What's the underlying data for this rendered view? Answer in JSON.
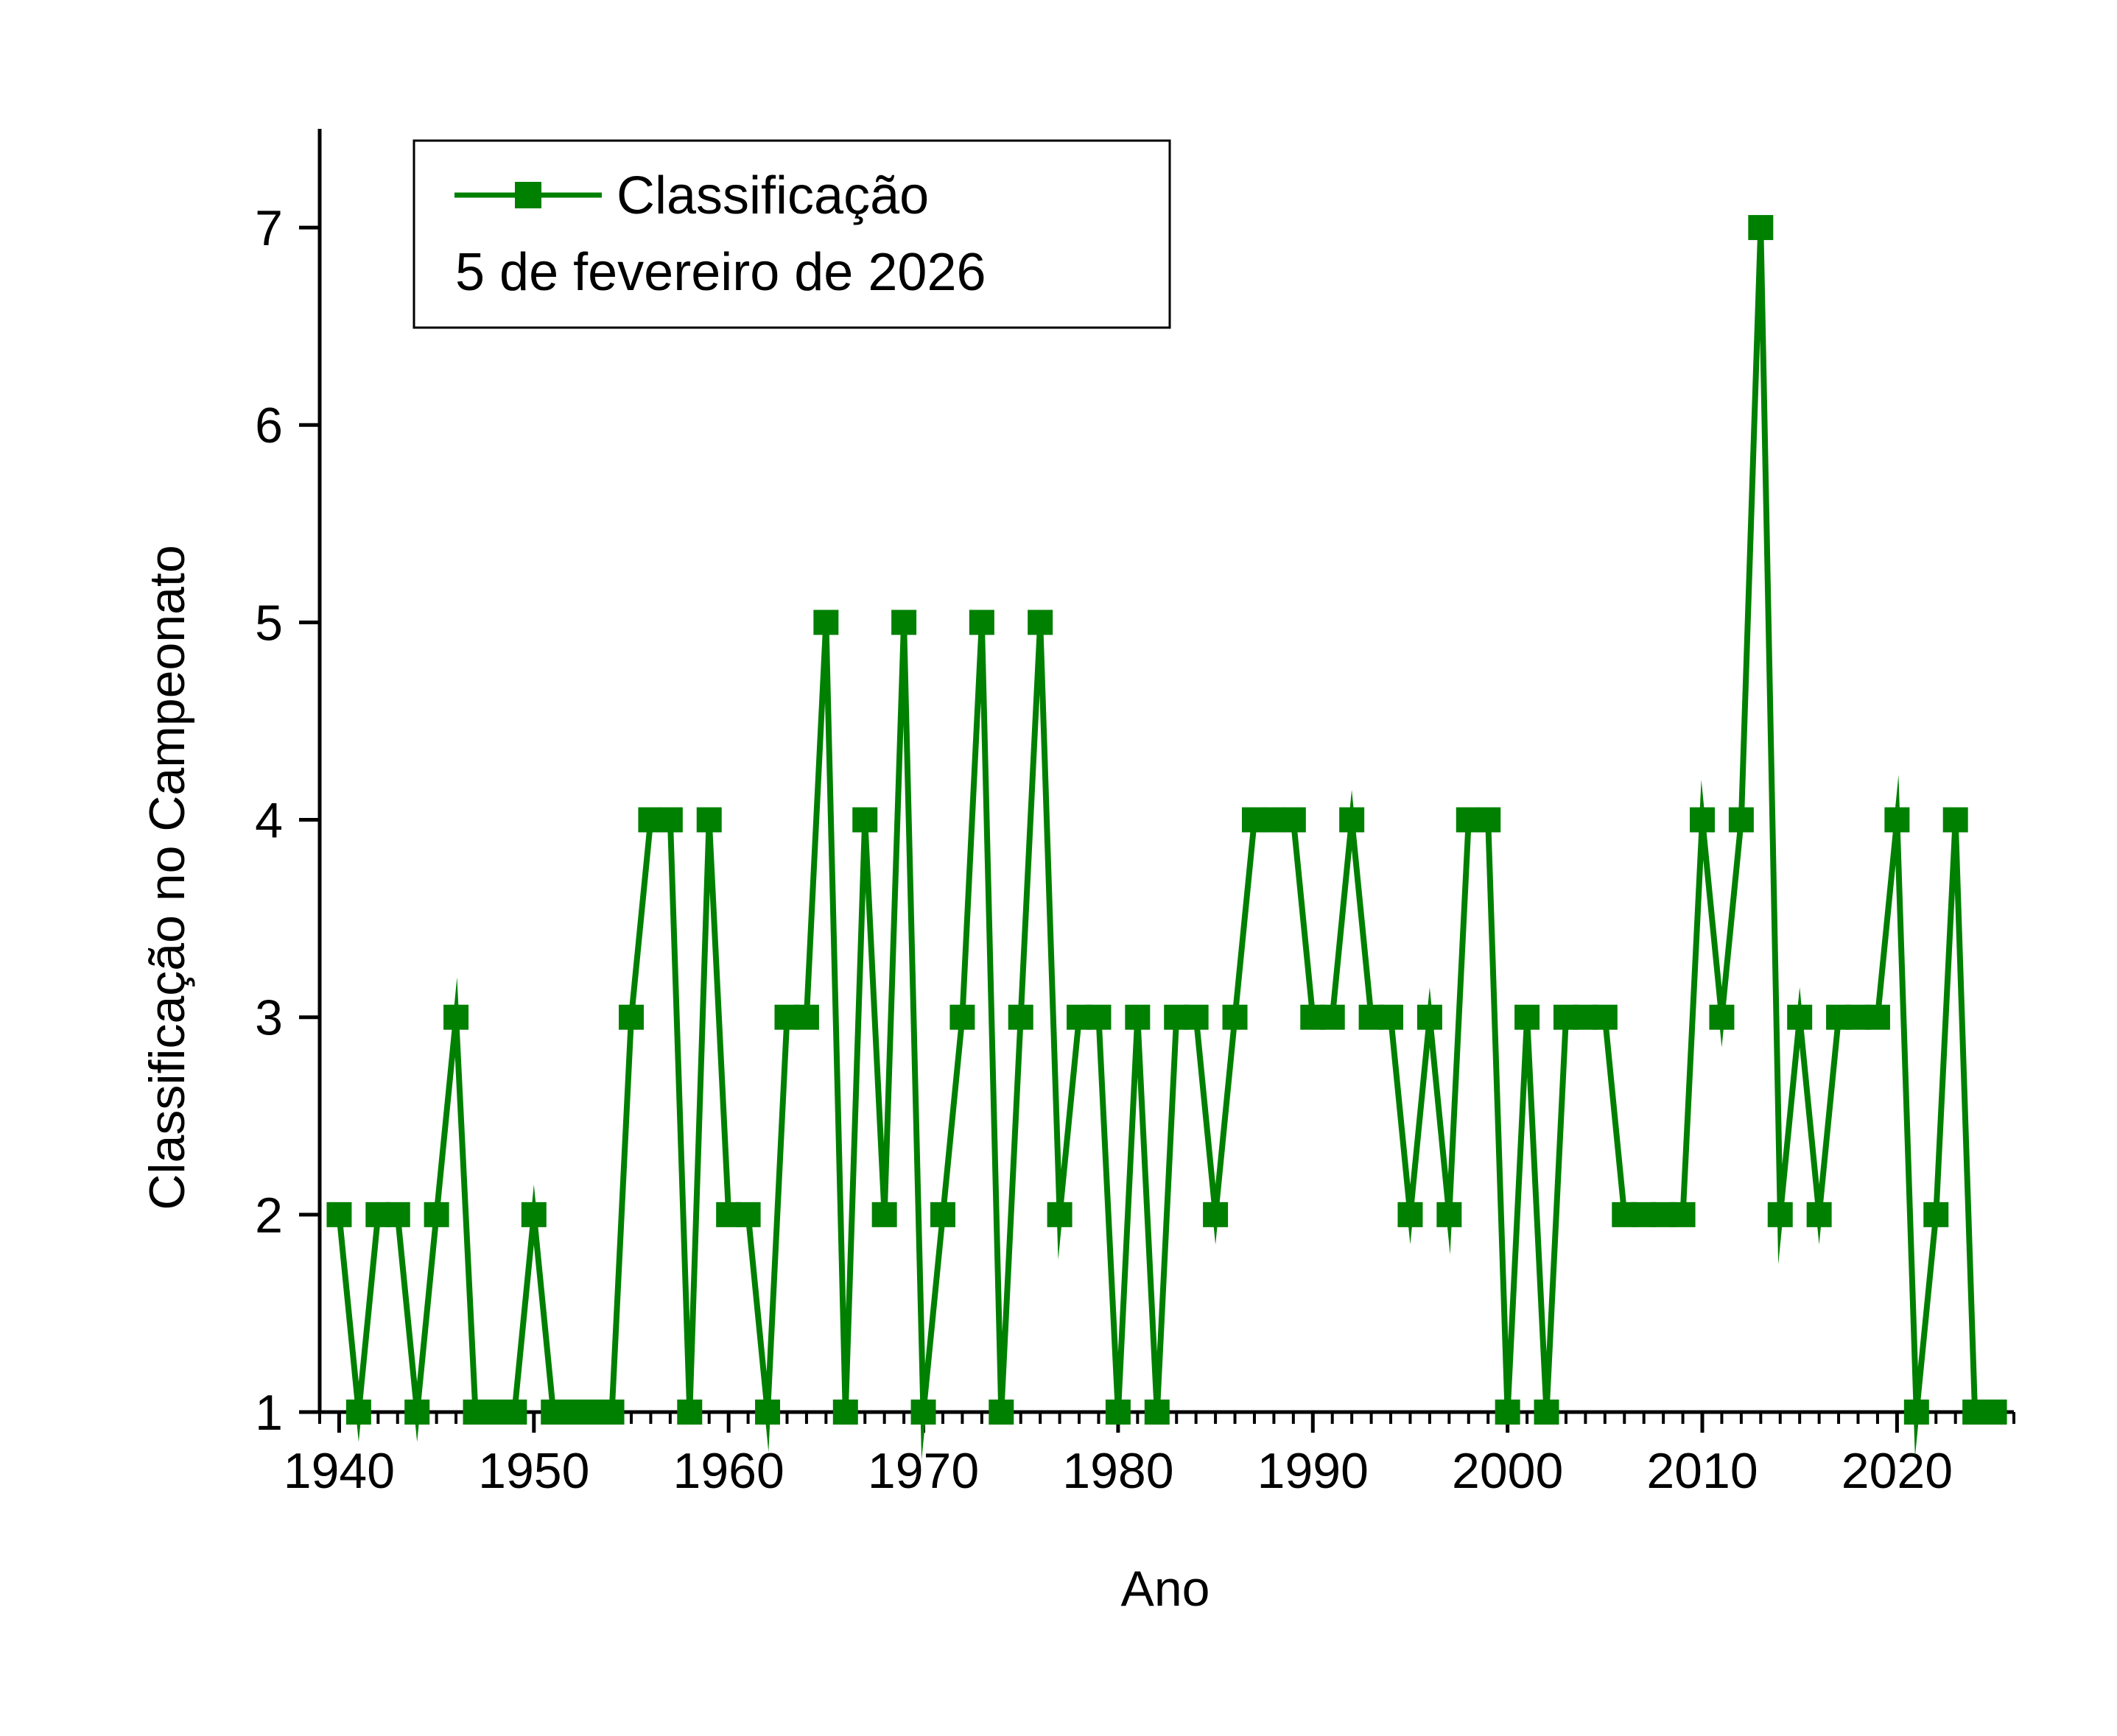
{
  "chart_data": {
    "type": "line",
    "xlabel": "Ano",
    "ylabel": "Classificação no Campeonato",
    "xlim": [
      1939,
      2026
    ],
    "ylim": [
      1,
      7.5
    ],
    "x_ticks": [
      1940,
      1950,
      1960,
      1970,
      1980,
      1990,
      2000,
      2010,
      2020
    ],
    "y_ticks": [
      1,
      2,
      3,
      4,
      5,
      6,
      7
    ],
    "legend_position": "top-left",
    "grid": false,
    "marker": "square",
    "color": "#008000",
    "legend": {
      "label": "Classificação",
      "note": "5 de fevereiro de 2026"
    },
    "series": [
      {
        "name": "Classificação",
        "x": [
          1940,
          1941,
          1942,
          1943,
          1944,
          1945,
          1946,
          1947,
          1948,
          1949,
          1950,
          1951,
          1952,
          1953,
          1954,
          1955,
          1956,
          1957,
          1958,
          1959,
          1960,
          1961,
          1962,
          1963,
          1964,
          1965,
          1966,
          1967,
          1968,
          1969,
          1970,
          1971,
          1972,
          1973,
          1974,
          1975,
          1976,
          1977,
          1978,
          1979,
          1980,
          1981,
          1982,
          1983,
          1984,
          1985,
          1986,
          1987,
          1988,
          1989,
          1990,
          1991,
          1992,
          1993,
          1994,
          1995,
          1996,
          1997,
          1998,
          1999,
          2000,
          2001,
          2002,
          2003,
          2004,
          2005,
          2006,
          2007,
          2008,
          2009,
          2010,
          2011,
          2012,
          2013,
          2014,
          2015,
          2016,
          2017,
          2018,
          2019,
          2020,
          2021,
          2022,
          2023,
          2024,
          2025
        ],
        "y": [
          2,
          1,
          2,
          2,
          1,
          2,
          3,
          1,
          1,
          1,
          2,
          1,
          1,
          1,
          1,
          3,
          4,
          4,
          1,
          4,
          2,
          2,
          1,
          3,
          3,
          5,
          1,
          4,
          2,
          5,
          1,
          2,
          3,
          5,
          1,
          3,
          5,
          2,
          3,
          3,
          1,
          3,
          1,
          3,
          3,
          2,
          3,
          4,
          4,
          4,
          3,
          3,
          4,
          3,
          3,
          2,
          3,
          2,
          4,
          4,
          1,
          3,
          1,
          3,
          3,
          3,
          2,
          2,
          2,
          2,
          4,
          3,
          4,
          7,
          2,
          3,
          2,
          3,
          3,
          3,
          4,
          1,
          2,
          4,
          1,
          1
        ]
      }
    ]
  }
}
